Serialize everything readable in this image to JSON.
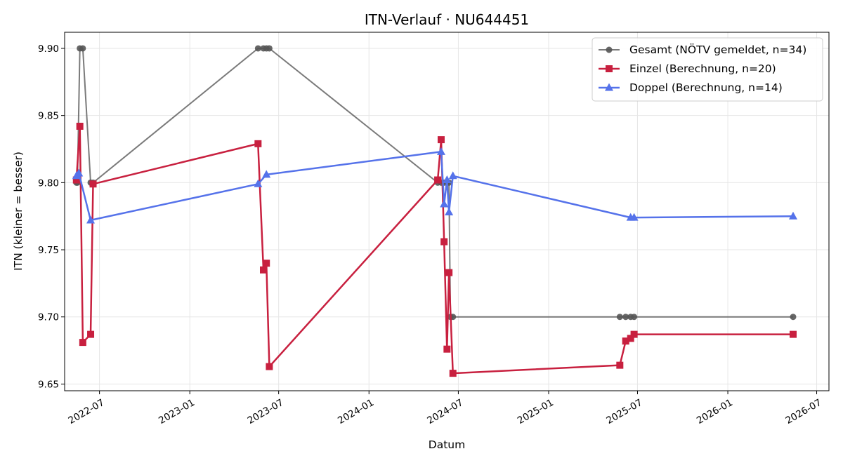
{
  "chart_data": {
    "type": "line",
    "title": "ITN-Verlauf · NU644451",
    "xlabel": "Datum",
    "ylabel": "ITN  (kleiner = besser)",
    "ylim": [
      9.645,
      9.912
    ],
    "xlim": [
      "2022-04-21",
      "2026-07-26"
    ],
    "grid": true,
    "legend_position": "top-right",
    "x_ticks": [
      "2022-07",
      "2023-01",
      "2023-07",
      "2024-01",
      "2024-07",
      "2025-01",
      "2025-07",
      "2026-01",
      "2026-07"
    ],
    "y_ticks": [
      "9.65",
      "9.70",
      "9.75",
      "9.80",
      "9.85",
      "9.90"
    ],
    "series": [
      {
        "name": "Gesamt (NÖTV gemeldet, n=34)",
        "color": "#555555",
        "marker": "circle",
        "points": [
          {
            "x": "2022-05-15",
            "y": 9.8
          },
          {
            "x": "2022-05-17",
            "y": 9.8
          },
          {
            "x": "2022-05-22",
            "y": 9.9
          },
          {
            "x": "2022-05-28",
            "y": 9.9
          },
          {
            "x": "2022-06-13",
            "y": 9.8
          },
          {
            "x": "2022-06-18",
            "y": 9.8
          },
          {
            "x": "2023-05-20",
            "y": 9.9
          },
          {
            "x": "2023-05-31",
            "y": 9.9
          },
          {
            "x": "2023-06-06",
            "y": 9.9
          },
          {
            "x": "2023-06-12",
            "y": 9.9
          },
          {
            "x": "2024-05-20",
            "y": 9.8
          },
          {
            "x": "2024-05-27",
            "y": 9.8
          },
          {
            "x": "2024-06-02",
            "y": 9.8
          },
          {
            "x": "2024-06-08",
            "y": 9.8
          },
          {
            "x": "2024-06-12",
            "y": 9.8
          },
          {
            "x": "2024-06-15",
            "y": 9.7
          },
          {
            "x": "2024-06-20",
            "y": 9.7
          },
          {
            "x": "2025-05-26",
            "y": 9.7
          },
          {
            "x": "2025-06-07",
            "y": 9.7
          },
          {
            "x": "2025-06-17",
            "y": 9.7
          },
          {
            "x": "2025-06-24",
            "y": 9.7
          },
          {
            "x": "2026-05-14",
            "y": 9.7
          }
        ]
      },
      {
        "name": "Einzel (Berechnung, n=20)",
        "color": "#c8203f",
        "marker": "square",
        "points": [
          {
            "x": "2022-05-15",
            "y": 9.802
          },
          {
            "x": "2022-05-22",
            "y": 9.842
          },
          {
            "x": "2022-05-28",
            "y": 9.681
          },
          {
            "x": "2022-06-13",
            "y": 9.687
          },
          {
            "x": "2022-06-18",
            "y": 9.799
          },
          {
            "x": "2023-05-20",
            "y": 9.829
          },
          {
            "x": "2023-05-31",
            "y": 9.735
          },
          {
            "x": "2023-06-06",
            "y": 9.74
          },
          {
            "x": "2023-06-12",
            "y": 9.663
          },
          {
            "x": "2024-05-20",
            "y": 9.802
          },
          {
            "x": "2024-05-27",
            "y": 9.832
          },
          {
            "x": "2024-06-02",
            "y": 9.756
          },
          {
            "x": "2024-06-08",
            "y": 9.676
          },
          {
            "x": "2024-06-12",
            "y": 9.733
          },
          {
            "x": "2024-06-20",
            "y": 9.658
          },
          {
            "x": "2025-05-26",
            "y": 9.664
          },
          {
            "x": "2025-06-07",
            "y": 9.682
          },
          {
            "x": "2025-06-17",
            "y": 9.684
          },
          {
            "x": "2025-06-24",
            "y": 9.687
          },
          {
            "x": "2026-05-14",
            "y": 9.687
          }
        ]
      },
      {
        "name": "Doppel (Berechnung, n=14)",
        "color": "#5572ea",
        "marker": "triangle",
        "points": [
          {
            "x": "2022-05-15",
            "y": 9.805
          },
          {
            "x": "2022-05-20",
            "y": 9.807
          },
          {
            "x": "2022-06-13",
            "y": 9.772
          },
          {
            "x": "2023-05-20",
            "y": 9.799
          },
          {
            "x": "2023-06-06",
            "y": 9.806
          },
          {
            "x": "2024-05-27",
            "y": 9.823
          },
          {
            "x": "2024-06-02",
            "y": 9.784
          },
          {
            "x": "2024-06-08",
            "y": 9.802
          },
          {
            "x": "2024-06-12",
            "y": 9.778
          },
          {
            "x": "2024-06-20",
            "y": 9.805
          },
          {
            "x": "2025-06-17",
            "y": 9.774
          },
          {
            "x": "2025-06-24",
            "y": 9.774
          },
          {
            "x": "2026-05-14",
            "y": 9.775
          }
        ]
      }
    ]
  }
}
